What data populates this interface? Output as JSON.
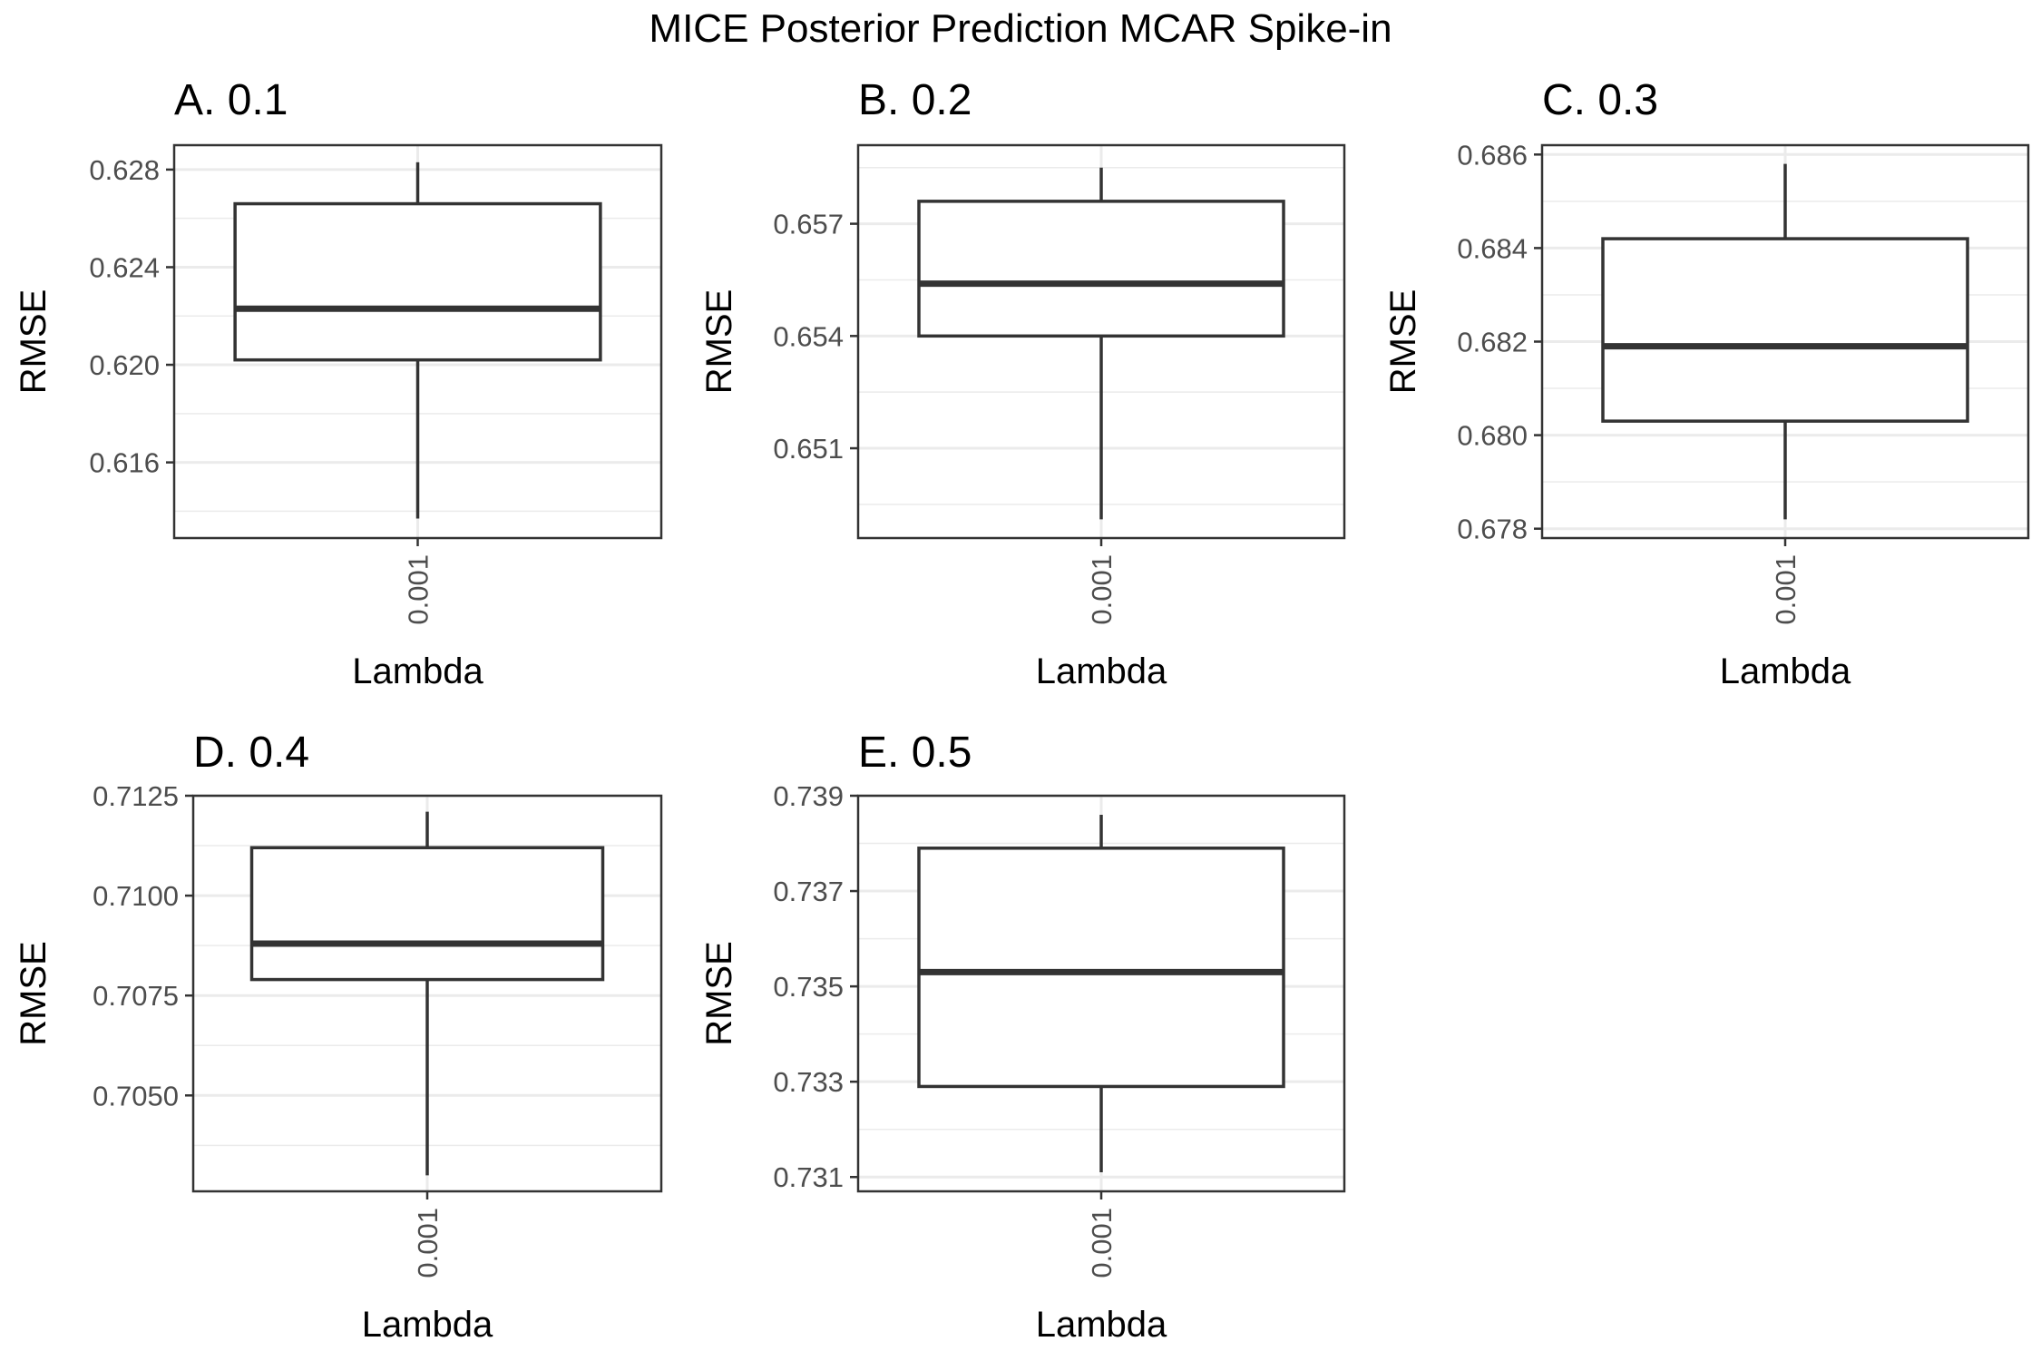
{
  "figure": {
    "title": "MICE Posterior Prediction MCAR Spike-in"
  },
  "chart_data": [
    {
      "type": "box",
      "title": "A. 0.1",
      "xlabel": "Lambda",
      "ylabel": "RMSE",
      "categories": [
        "0.001"
      ],
      "ylim": [
        0.6129,
        0.629
      ],
      "yticks": [
        0.616,
        0.62,
        0.624,
        0.628
      ],
      "ytick_labels": [
        "0.616",
        "0.620",
        "0.624",
        "0.628"
      ],
      "grid": true,
      "box": {
        "min": 0.6137,
        "q1": 0.6202,
        "median": 0.6223,
        "q3": 0.6266,
        "max": 0.6283
      }
    },
    {
      "type": "box",
      "title": "B. 0.2",
      "xlabel": "Lambda",
      "ylabel": "RMSE",
      "categories": [
        "0.001"
      ],
      "ylim": [
        0.6486,
        0.6591
      ],
      "yticks": [
        0.651,
        0.654,
        0.657
      ],
      "ytick_labels": [
        "0.651",
        "0.654",
        "0.657"
      ],
      "grid": true,
      "box": {
        "min": 0.6491,
        "q1": 0.654,
        "median": 0.6554,
        "q3": 0.6576,
        "max": 0.6585
      }
    },
    {
      "type": "box",
      "title": "C. 0.3",
      "xlabel": "Lambda",
      "ylabel": "RMSE",
      "categories": [
        "0.001"
      ],
      "ylim": [
        0.6778,
        0.6862
      ],
      "yticks": [
        0.678,
        0.68,
        0.682,
        0.684,
        0.686
      ],
      "ytick_labels": [
        "0.678",
        "0.680",
        "0.682",
        "0.684",
        "0.686"
      ],
      "grid": true,
      "box": {
        "min": 0.6782,
        "q1": 0.6803,
        "median": 0.6819,
        "q3": 0.6842,
        "max": 0.6858
      }
    },
    {
      "type": "box",
      "title": "D. 0.4",
      "xlabel": "Lambda",
      "ylabel": "RMSE",
      "categories": [
        "0.001"
      ],
      "ylim": [
        0.7026,
        0.7125
      ],
      "yticks": [
        0.705,
        0.7075,
        0.71,
        0.7125
      ],
      "ytick_labels": [
        "0.7050",
        "0.7075",
        "0.7100",
        "0.7125"
      ],
      "grid": true,
      "box": {
        "min": 0.703,
        "q1": 0.7079,
        "median": 0.7088,
        "q3": 0.7112,
        "max": 0.7121
      }
    },
    {
      "type": "box",
      "title": "E. 0.5",
      "xlabel": "Lambda",
      "ylabel": "RMSE",
      "categories": [
        "0.001"
      ],
      "ylim": [
        0.7307,
        0.739
      ],
      "yticks": [
        0.731,
        0.733,
        0.735,
        0.737,
        0.739
      ],
      "ytick_labels": [
        "0.731",
        "0.733",
        "0.735",
        "0.737",
        "0.739"
      ],
      "grid": true,
      "box": {
        "min": 0.7311,
        "q1": 0.7329,
        "median": 0.7353,
        "q3": 0.7379,
        "max": 0.7386
      }
    }
  ]
}
